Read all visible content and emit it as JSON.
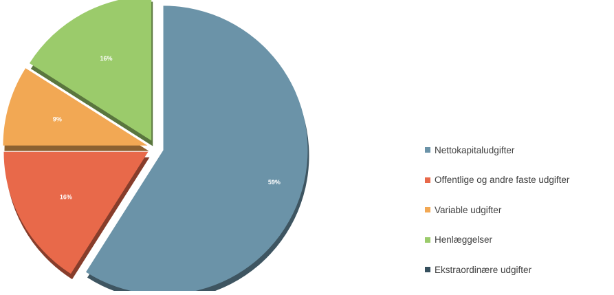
{
  "chart_data": {
    "type": "pie",
    "exploded": true,
    "three_d": true,
    "legend_position": "right",
    "series": [
      {
        "name": "Nettokapitaludgifter",
        "value": 59,
        "label": "59%",
        "color": "#6b93a8"
      },
      {
        "name": "Offentlige og andre faste udgifter",
        "value": 16,
        "label": "16%",
        "color": "#e8694a"
      },
      {
        "name": "Variable udgifter",
        "value": 9,
        "label": "9%",
        "color": "#f2a854"
      },
      {
        "name": "Henlæggelser",
        "value": 16,
        "label": "16%",
        "color": "#9bcb6b"
      },
      {
        "name": "Ekstraordinære udgifter",
        "value": 0,
        "label": "0",
        "color": "#36505e"
      }
    ]
  }
}
